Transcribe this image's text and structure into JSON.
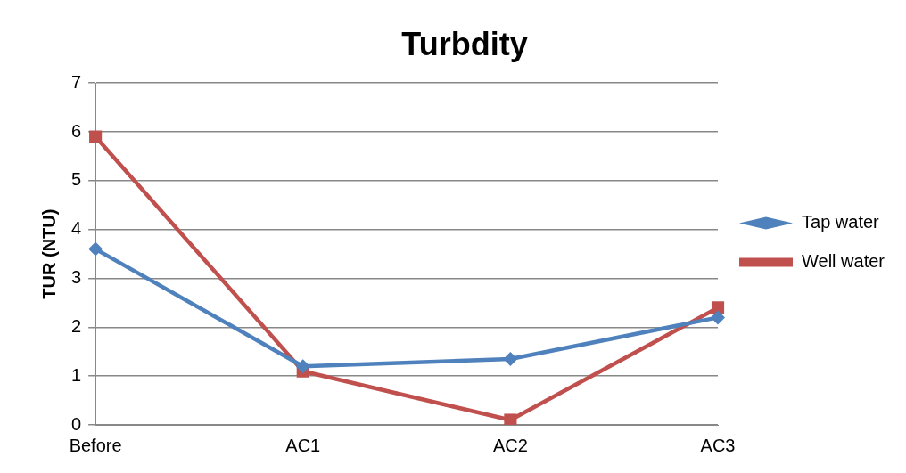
{
  "chart_data": {
    "type": "line",
    "title": "Turbdity",
    "ylabel": "TUR (NTU)",
    "categories": [
      "Before",
      "AC1",
      "AC2",
      "AC3"
    ],
    "series": [
      {
        "name": "Tap water",
        "color": "#4f81bd",
        "marker": "diamond",
        "values": [
          3.6,
          1.2,
          1.35,
          2.2
        ]
      },
      {
        "name": "Well water",
        "color": "#c0504d",
        "marker": "square",
        "values": [
          5.9,
          1.1,
          0.1,
          2.4
        ]
      }
    ],
    "ylim": [
      0,
      7
    ],
    "yticks": [
      0,
      1,
      2,
      3,
      4,
      5,
      6,
      7
    ],
    "grid": "y",
    "legend": "right",
    "line_style": "solid"
  }
}
